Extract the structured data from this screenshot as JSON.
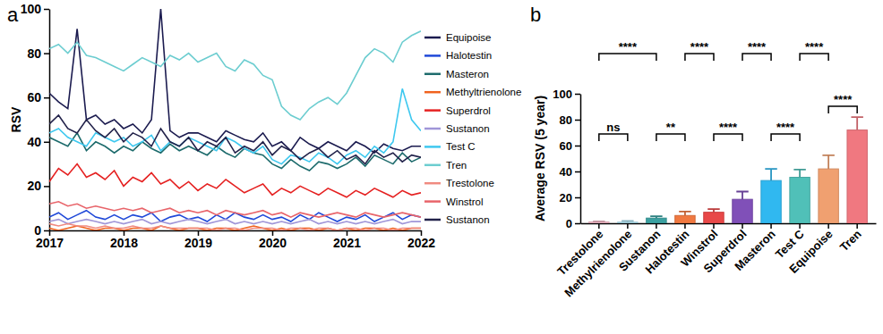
{
  "chart_data": [
    {
      "type": "line",
      "panel_label": "a",
      "y_label": "RSV",
      "x": [
        2017,
        2017.125,
        2017.25,
        2017.375,
        2017.5,
        2017.625,
        2017.75,
        2017.875,
        2018,
        2018.125,
        2018.25,
        2018.375,
        2018.5,
        2018.625,
        2018.75,
        2018.875,
        2019,
        2019.125,
        2019.25,
        2019.375,
        2019.5,
        2019.625,
        2019.75,
        2019.875,
        2020,
        2020.125,
        2020.25,
        2020.375,
        2020.5,
        2020.625,
        2020.75,
        2020.875,
        2021,
        2021.125,
        2021.25,
        2021.375,
        2021.5,
        2021.625,
        2021.75,
        2021.875,
        2022
      ],
      "xlim": [
        2017,
        2022
      ],
      "xticks": [
        2017,
        2018,
        2019,
        2020,
        2021,
        2022
      ],
      "ylim": [
        0,
        100
      ],
      "yticks": [
        0,
        20,
        40,
        60,
        80,
        100
      ],
      "legend": "right",
      "series": [
        {
          "name": "Equipoise",
          "color": "#1b1b4f",
          "values": [
            62,
            58,
            55,
            91,
            50,
            52,
            48,
            50,
            46,
            48,
            44,
            50,
            100,
            45,
            42,
            44,
            44,
            42,
            40,
            45,
            43,
            41,
            40,
            44,
            38,
            40,
            36,
            42,
            39,
            37,
            40,
            38,
            36,
            40,
            38,
            35,
            39,
            37,
            36,
            38,
            38
          ]
        },
        {
          "name": "Halotestin",
          "color": "#1f48d8",
          "values": [
            6,
            8,
            5,
            7,
            9,
            6,
            5,
            7,
            5,
            7,
            6,
            8,
            4,
            6,
            7,
            5,
            6,
            4,
            7,
            5,
            8,
            6,
            5,
            7,
            5,
            6,
            4,
            7,
            5,
            8,
            6,
            4,
            6,
            5,
            7,
            4,
            6,
            8,
            5,
            7,
            6
          ]
        },
        {
          "name": "Masteron",
          "color": "#1d6b6c",
          "values": [
            42,
            40,
            38,
            44,
            36,
            40,
            38,
            35,
            38,
            36,
            40,
            37,
            35,
            39,
            36,
            38,
            36,
            34,
            38,
            35,
            33,
            37,
            35,
            34,
            30,
            28,
            32,
            29,
            27,
            31,
            30,
            28,
            30,
            33,
            29,
            34,
            32,
            30,
            35,
            31,
            33
          ]
        },
        {
          "name": "Methyltrienolone",
          "color": "#f0621e",
          "values": [
            1,
            0,
            1,
            2,
            1,
            0,
            1,
            1,
            0,
            1,
            1,
            0,
            2,
            1,
            0,
            1,
            1,
            0,
            1,
            1,
            0,
            1,
            2,
            1,
            0,
            1,
            0,
            1,
            1,
            0,
            1,
            0,
            1,
            0,
            1,
            1,
            0,
            1,
            0,
            1,
            1
          ]
        },
        {
          "name": "Superdrol",
          "color": "#e52121",
          "values": [
            22,
            28,
            25,
            30,
            24,
            26,
            23,
            27,
            20,
            24,
            22,
            26,
            21,
            23,
            19,
            22,
            18,
            21,
            19,
            23,
            20,
            17,
            19,
            21,
            16,
            19,
            17,
            20,
            18,
            16,
            19,
            17,
            15,
            18,
            16,
            19,
            17,
            15,
            18,
            16,
            17
          ]
        },
        {
          "name": "Sustanon",
          "color": "#a096d8",
          "values": [
            4,
            5,
            3,
            4,
            5,
            4,
            3,
            4,
            3,
            4,
            5,
            3,
            4,
            3,
            4,
            5,
            4,
            3,
            4,
            5,
            3,
            4,
            3,
            4,
            3,
            4,
            3,
            4,
            5,
            3,
            4,
            3,
            4,
            3,
            4,
            3,
            4,
            5,
            3,
            4,
            4
          ]
        },
        {
          "name": "Test C",
          "color": "#3ec8ef",
          "values": [
            44,
            46,
            42,
            40,
            38,
            44,
            42,
            40,
            42,
            38,
            40,
            43,
            36,
            40,
            38,
            42,
            40,
            38,
            36,
            42,
            40,
            37,
            35,
            38,
            32,
            30,
            34,
            33,
            31,
            35,
            33,
            30,
            34,
            36,
            33,
            38,
            35,
            40,
            64,
            50,
            45
          ]
        },
        {
          "name": "Tren",
          "color": "#6ccdd0",
          "values": [
            82,
            84,
            80,
            85,
            79,
            78,
            76,
            74,
            72,
            75,
            78,
            76,
            74,
            79,
            77,
            80,
            76,
            78,
            80,
            74,
            72,
            77,
            75,
            70,
            68,
            56,
            52,
            50,
            55,
            58,
            60,
            57,
            62,
            70,
            78,
            82,
            80,
            76,
            85,
            88,
            90
          ]
        },
        {
          "name": "Trestolone",
          "color": "#f08a80",
          "values": [
            3,
            2,
            3,
            2,
            2,
            1,
            2,
            1,
            1,
            2,
            1,
            1,
            2,
            1,
            1,
            1,
            1,
            1,
            0,
            1,
            1,
            0,
            1,
            1,
            1,
            0,
            1,
            1,
            0,
            1,
            1,
            0,
            1,
            1,
            0,
            1,
            1,
            0,
            1,
            1,
            1
          ]
        },
        {
          "name": "Winstrol",
          "color": "#e8646a",
          "values": [
            12,
            13,
            11,
            12,
            10,
            11,
            10,
            9,
            10,
            9,
            10,
            8,
            9,
            10,
            8,
            9,
            8,
            9,
            7,
            9,
            8,
            7,
            8,
            9,
            7,
            8,
            6,
            8,
            7,
            6,
            7,
            8,
            7,
            6,
            8,
            7,
            6,
            7,
            8,
            7,
            6
          ]
        },
        {
          "name": "Sustanon",
          "color": "#22224a",
          "values": [
            48,
            52,
            46,
            44,
            50,
            45,
            42,
            46,
            40,
            44,
            42,
            38,
            46,
            40,
            38,
            42,
            36,
            40,
            38,
            42,
            35,
            38,
            36,
            40,
            34,
            38,
            36,
            32,
            35,
            37,
            33,
            36,
            32,
            34,
            30,
            36,
            33,
            35,
            31,
            34,
            33
          ]
        }
      ]
    },
    {
      "type": "bar",
      "panel_label": "b",
      "y_label": "Average RSV (5 year)",
      "categories": [
        "Trestolone",
        "Methylrienolone",
        "Sustanon",
        "Halotestin",
        "Winstrol",
        "Superdrol",
        "Masteron",
        "Test C",
        "Equipoise",
        "Tren"
      ],
      "values": [
        1,
        0.8,
        4,
        6,
        8.5,
        18.5,
        33,
        35.5,
        42,
        72
      ],
      "errors": [
        0.5,
        1,
        1.5,
        3,
        2.5,
        6,
        9,
        6,
        10.5,
        10
      ],
      "colors": [
        "#f4b8c8",
        "#a8dcec",
        "#3aa0a0",
        "#f07840",
        "#e84848",
        "#8050b8",
        "#30b8f0",
        "#50c0b8",
        "#f0a070",
        "#f07880"
      ],
      "ylim": [
        0,
        100
      ],
      "yticks": [
        0,
        20,
        40,
        60,
        80,
        100
      ],
      "annotations": [
        {
          "from": "Trestolone",
          "to": "Sustanon",
          "text": "****"
        },
        {
          "from": "Trestolone",
          "to": "Methylrienolone",
          "text": "ns"
        },
        {
          "from": "Sustanon",
          "to": "Halotestin",
          "text": "**"
        },
        {
          "from": "Halotestin",
          "to": "Winstrol",
          "text": "****"
        },
        {
          "from": "Winstrol",
          "to": "Superdrol",
          "text": "****"
        },
        {
          "from": "Superdrol",
          "to": "Masteron",
          "text": "****"
        },
        {
          "from": "Masteron",
          "to": "Test C",
          "text": "****"
        },
        {
          "from": "Test C",
          "to": "Equipoise",
          "text": "****"
        },
        {
          "from": "Equipoise",
          "to": "Tren",
          "text": "****"
        }
      ]
    }
  ]
}
